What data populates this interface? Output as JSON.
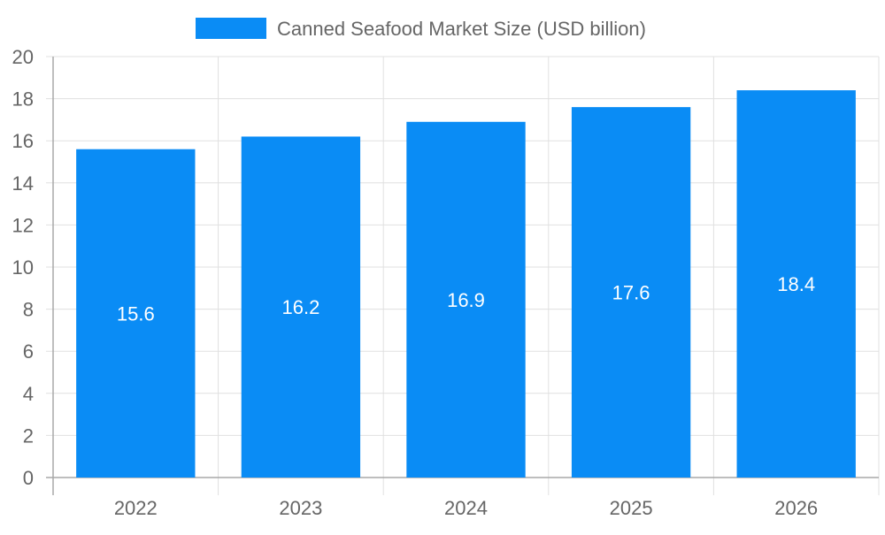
{
  "chart_data": {
    "type": "bar",
    "categories": [
      "2022",
      "2023",
      "2024",
      "2025",
      "2026"
    ],
    "series": [
      {
        "name": "Canned Seafood Market Size (USD billion)",
        "values": [
          15.6,
          16.2,
          16.9,
          17.6,
          18.4
        ],
        "color": "#0a8cf5"
      }
    ],
    "data_labels": [
      "15.6",
      "16.2",
      "16.9",
      "17.6",
      "18.4"
    ],
    "ylim": [
      0,
      20
    ],
    "yticks": [
      0,
      2,
      4,
      6,
      8,
      10,
      12,
      14,
      16,
      18,
      20
    ],
    "grid": true,
    "legend_position": "top-center",
    "colors": {
      "grid": "#e0e0e0",
      "axis": "#a8a8a8",
      "tick_text": "#666666",
      "label_text": "#ffffff"
    }
  }
}
